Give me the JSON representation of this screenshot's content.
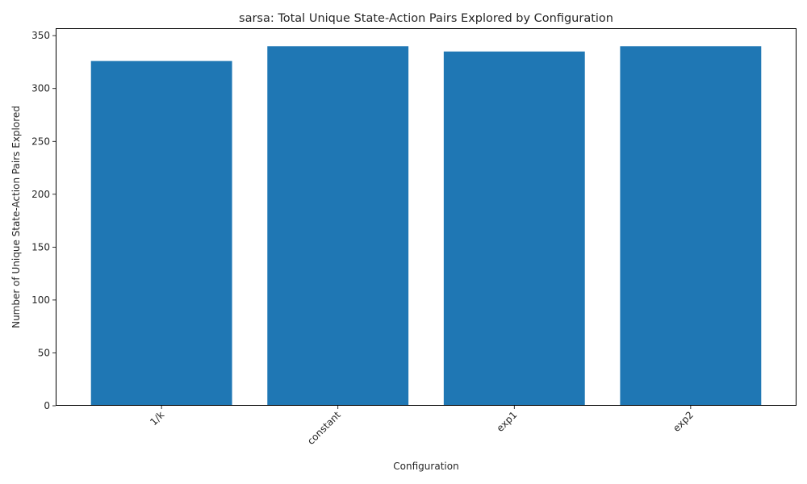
{
  "chart_data": {
    "type": "bar",
    "title": "sarsa: Total Unique State-Action Pairs Explored by Configuration",
    "xlabel": "Configuration",
    "ylabel": "Number of Unique State-Action Pairs Explored",
    "categories": [
      "1/k",
      "constant",
      "exp1",
      "exp2"
    ],
    "values": [
      326,
      340,
      335,
      340
    ],
    "ylim": [
      0,
      357
    ],
    "yticks": [
      0,
      50,
      100,
      150,
      200,
      250,
      300,
      350
    ],
    "xtick_rotation": "45 degrees",
    "grid": false,
    "legend": "none",
    "bar_color": "#1f77b4"
  }
}
